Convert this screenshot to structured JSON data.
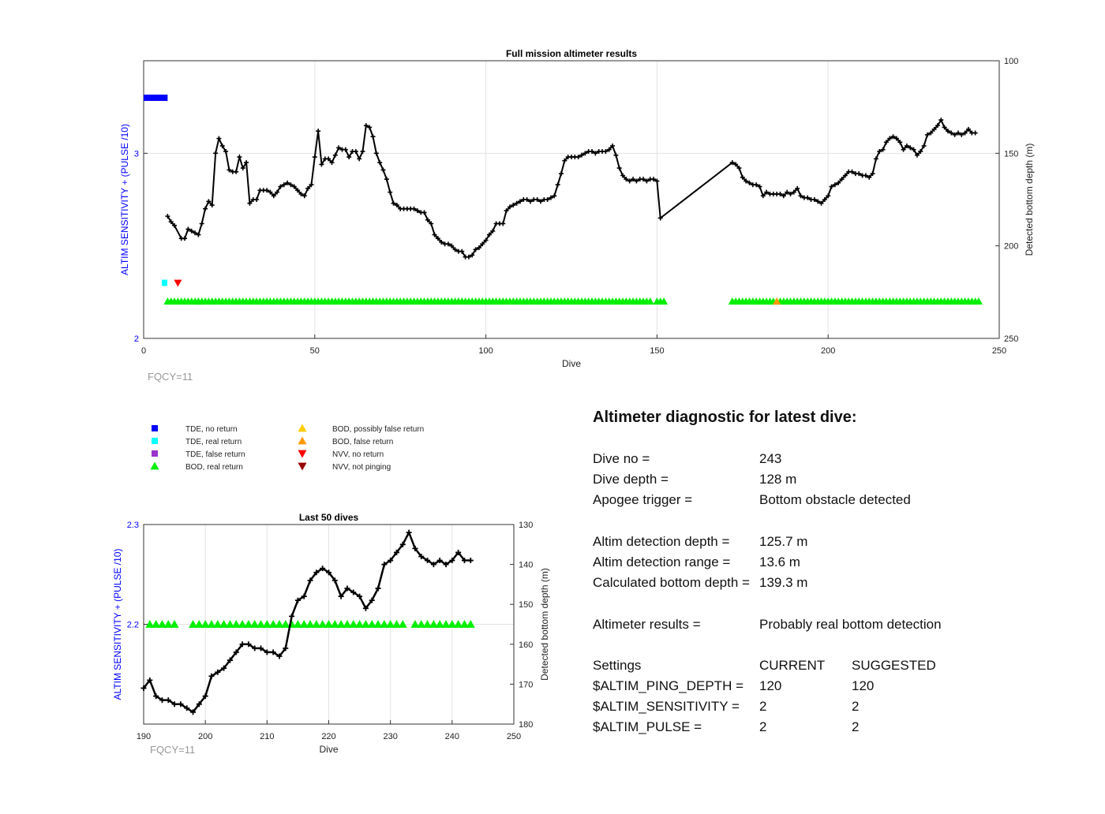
{
  "chart_data": [
    {
      "type": "line",
      "title": "Full mission altimeter results",
      "xlabel": "Dive",
      "ylabel_left": "ALTIM SENSITIVITY + (PULSE /10)",
      "ylabel_right": "Detected bottom depth (m)",
      "xlim": [
        0,
        250
      ],
      "ylim_left": [
        2,
        3.5
      ],
      "ylim_right": [
        250,
        100
      ],
      "xticks": [
        0,
        50,
        100,
        150,
        200,
        250
      ],
      "yticks_left": [
        2,
        3
      ],
      "yticks_right": [
        100,
        150,
        200,
        250
      ],
      "grid": true,
      "note": "FQCY=11",
      "depth_series": {
        "name": "Detected bottom depth",
        "color": "#000000",
        "points": [
          [
            7,
            184
          ],
          [
            8,
            187
          ],
          [
            9,
            189
          ],
          [
            11,
            196
          ],
          [
            12,
            196
          ],
          [
            13,
            191
          ],
          [
            14,
            192
          ],
          [
            15,
            193
          ],
          [
            16,
            194
          ],
          [
            17,
            188
          ],
          [
            18,
            180
          ],
          [
            19,
            176
          ],
          [
            20,
            178
          ],
          [
            21,
            150
          ],
          [
            22,
            142
          ],
          [
            23,
            146
          ],
          [
            24,
            149
          ],
          [
            25,
            159
          ],
          [
            26,
            160
          ],
          [
            27,
            160
          ],
          [
            28,
            152
          ],
          [
            29,
            158
          ],
          [
            30,
            155
          ],
          [
            31,
            177
          ],
          [
            32,
            175
          ],
          [
            33,
            175
          ],
          [
            34,
            170
          ],
          [
            35,
            170
          ],
          [
            36,
            170
          ],
          [
            37,
            171
          ],
          [
            38,
            173
          ],
          [
            39,
            171
          ],
          [
            40,
            168
          ],
          [
            41,
            167
          ],
          [
            42,
            166
          ],
          [
            43,
            167
          ],
          [
            44,
            168
          ],
          [
            45,
            170
          ],
          [
            46,
            172
          ],
          [
            47,
            173
          ],
          [
            48,
            169
          ],
          [
            49,
            167
          ],
          [
            50,
            152
          ],
          [
            51,
            138
          ],
          [
            52,
            156
          ],
          [
            53,
            153
          ],
          [
            54,
            153
          ],
          [
            55,
            155
          ],
          [
            56,
            151
          ],
          [
            57,
            147
          ],
          [
            58,
            148
          ],
          [
            59,
            148
          ],
          [
            60,
            152
          ],
          [
            61,
            149
          ],
          [
            62,
            149
          ],
          [
            63,
            153
          ],
          [
            64,
            149
          ],
          [
            65,
            135
          ],
          [
            66,
            136
          ],
          [
            67,
            141
          ],
          [
            68,
            150
          ],
          [
            69,
            155
          ],
          [
            70,
            159
          ],
          [
            71,
            164
          ],
          [
            72,
            171
          ],
          [
            73,
            177
          ],
          [
            74,
            178
          ],
          [
            75,
            180
          ],
          [
            76,
            180
          ],
          [
            77,
            180
          ],
          [
            78,
            180
          ],
          [
            79,
            180
          ],
          [
            80,
            181
          ],
          [
            81,
            182
          ],
          [
            82,
            182
          ],
          [
            83,
            186
          ],
          [
            84,
            188
          ],
          [
            85,
            194
          ],
          [
            86,
            196
          ],
          [
            87,
            198
          ],
          [
            88,
            199
          ],
          [
            89,
            199
          ],
          [
            90,
            200
          ],
          [
            91,
            202
          ],
          [
            92,
            203
          ],
          [
            93,
            203
          ],
          [
            94,
            206
          ],
          [
            95,
            206
          ],
          [
            96,
            205
          ],
          [
            97,
            202
          ],
          [
            98,
            201
          ],
          [
            99,
            199
          ],
          [
            100,
            197
          ],
          [
            101,
            194
          ],
          [
            102,
            192
          ],
          [
            103,
            188
          ],
          [
            104,
            188
          ],
          [
            105,
            188
          ],
          [
            106,
            181
          ],
          [
            107,
            179
          ],
          [
            108,
            178
          ],
          [
            109,
            177
          ],
          [
            110,
            176
          ],
          [
            111,
            175
          ],
          [
            112,
            175
          ],
          [
            113,
            176
          ],
          [
            114,
            175
          ],
          [
            115,
            175
          ],
          [
            116,
            176
          ],
          [
            117,
            175
          ],
          [
            118,
            175
          ],
          [
            119,
            174
          ],
          [
            120,
            173
          ],
          [
            121,
            167
          ],
          [
            122,
            161
          ],
          [
            123,
            154
          ],
          [
            124,
            152
          ],
          [
            125,
            152
          ],
          [
            126,
            152
          ],
          [
            127,
            152
          ],
          [
            128,
            151
          ],
          [
            129,
            150
          ],
          [
            130,
            149
          ],
          [
            131,
            149
          ],
          [
            132,
            150
          ],
          [
            133,
            149
          ],
          [
            134,
            149
          ],
          [
            135,
            149
          ],
          [
            136,
            148
          ],
          [
            137,
            146
          ],
          [
            138,
            151
          ],
          [
            139,
            158
          ],
          [
            140,
            162
          ],
          [
            141,
            164
          ],
          [
            142,
            165
          ],
          [
            143,
            164
          ],
          [
            144,
            165
          ],
          [
            145,
            164
          ],
          [
            146,
            164
          ],
          [
            147,
            165
          ],
          [
            148,
            164
          ],
          [
            149,
            164
          ],
          [
            150,
            165
          ],
          [
            151,
            185
          ],
          [
            172,
            155
          ],
          [
            173,
            156
          ],
          [
            174,
            158
          ],
          [
            175,
            163
          ],
          [
            176,
            165
          ],
          [
            177,
            166
          ],
          [
            178,
            167
          ],
          [
            179,
            167
          ],
          [
            180,
            168
          ],
          [
            181,
            173
          ],
          [
            182,
            171
          ],
          [
            183,
            172
          ],
          [
            184,
            172
          ],
          [
            185,
            172
          ],
          [
            186,
            172
          ],
          [
            187,
            173
          ],
          [
            188,
            171
          ],
          [
            189,
            172
          ],
          [
            190,
            171
          ],
          [
            191,
            169
          ],
          [
            192,
            173
          ],
          [
            193,
            174
          ],
          [
            194,
            174
          ],
          [
            195,
            175
          ],
          [
            196,
            175
          ],
          [
            197,
            176
          ],
          [
            198,
            177
          ],
          [
            199,
            175
          ],
          [
            200,
            173
          ],
          [
            201,
            168
          ],
          [
            202,
            167
          ],
          [
            203,
            166
          ],
          [
            204,
            164
          ],
          [
            205,
            162
          ],
          [
            206,
            160
          ],
          [
            207,
            160
          ],
          [
            208,
            161
          ],
          [
            209,
            161
          ],
          [
            210,
            162
          ],
          [
            211,
            162
          ],
          [
            212,
            163
          ],
          [
            213,
            161
          ],
          [
            214,
            153
          ],
          [
            215,
            149
          ],
          [
            216,
            148
          ],
          [
            217,
            144
          ],
          [
            218,
            142
          ],
          [
            219,
            141
          ],
          [
            220,
            142
          ],
          [
            221,
            144
          ],
          [
            222,
            148
          ],
          [
            223,
            146
          ],
          [
            224,
            147
          ],
          [
            225,
            148
          ],
          [
            226,
            151
          ],
          [
            227,
            149
          ],
          [
            228,
            146
          ],
          [
            229,
            140
          ],
          [
            230,
            139
          ],
          [
            231,
            137
          ],
          [
            232,
            135
          ],
          [
            233,
            132
          ],
          [
            234,
            136
          ],
          [
            235,
            138
          ],
          [
            236,
            139
          ],
          [
            237,
            140
          ],
          [
            238,
            139
          ],
          [
            239,
            140
          ],
          [
            240,
            139
          ],
          [
            241,
            137
          ],
          [
            242,
            139
          ],
          [
            243,
            139
          ]
        ]
      },
      "status_markers": [
        {
          "type": "TDE, no return",
          "dives": [
            [
              0,
              7
            ]
          ],
          "level": 3.3
        },
        {
          "type": "TDE, real return",
          "dives": [
            [
              6,
              7
            ]
          ],
          "level": 2.3
        },
        {
          "type": "BOD, real return",
          "dives": [
            [
              7,
              16
            ],
            [
              16,
              148
            ],
            [
              150,
              152
            ],
            [
              172,
              244
            ]
          ],
          "level": 2.2
        },
        {
          "type": "BOD, false return",
          "dives": [
            [
              185
            ]
          ],
          "level": 2.2
        },
        {
          "type": "NVV, no return",
          "dives": [
            [
              10
            ]
          ],
          "level": 2.3
        }
      ]
    },
    {
      "type": "line",
      "title": "Last 50 dives",
      "xlabel": "Dive",
      "ylabel_left": "ALTIM SENSITIVITY + (PULSE /10)",
      "ylabel_right": "Detected bottom depth (m)",
      "xlim": [
        190,
        250
      ],
      "ylim_left": [
        2.1,
        2.3
      ],
      "ylim_right": [
        180,
        130
      ],
      "xticks": [
        190,
        200,
        210,
        220,
        230,
        240,
        250
      ],
      "yticks_left": [
        2.2,
        2.3
      ],
      "yticks_right": [
        130,
        140,
        150,
        160,
        170,
        180
      ],
      "grid": true,
      "note": "FQCY=11",
      "bod_real_return_dives": [
        191,
        192,
        193,
        194,
        195,
        198,
        199,
        200,
        201,
        202,
        203,
        204,
        205,
        206,
        207,
        208,
        209,
        210,
        211,
        212,
        213,
        214,
        215,
        216,
        217,
        218,
        219,
        220,
        221,
        222,
        223,
        224,
        225,
        226,
        227,
        228,
        229,
        230,
        231,
        232,
        234,
        235,
        236,
        237,
        238,
        239,
        240,
        241,
        242,
        243
      ]
    }
  ],
  "legend": {
    "items": [
      {
        "label": "TDE, no return",
        "shape": "square",
        "color": "#0000ff"
      },
      {
        "label": "TDE, real return",
        "shape": "square",
        "color": "#00ffff"
      },
      {
        "label": "TDE, false return",
        "shape": "square",
        "color": "#9933cc"
      },
      {
        "label": "BOD, real return",
        "shape": "triangle-up",
        "color": "#00ee00"
      },
      {
        "label": "BOD, possibly false return",
        "shape": "triangle-up",
        "color": "#ffcc00"
      },
      {
        "label": "BOD, false return",
        "shape": "triangle-up",
        "color": "#ff9900"
      },
      {
        "label": "NVV, no return",
        "shape": "triangle-down",
        "color": "#ff0000"
      },
      {
        "label": "NVV, not pinging",
        "shape": "triangle-down",
        "color": "#990000"
      }
    ]
  },
  "diagnostic": {
    "heading": "Altimeter diagnostic for latest dive:",
    "dive_no_label": "Dive no =",
    "dive_no_value": "243",
    "dive_depth_label": "Dive depth =",
    "dive_depth_value": "128 m",
    "apogee_label": "Apogee trigger =",
    "apogee_value": "Bottom obstacle detected",
    "altim_depth_label": "Altim detection depth =",
    "altim_depth_value": "125.7 m",
    "altim_range_label": "Altim detection range =",
    "altim_range_value": "13.6 m",
    "calc_bottom_label": "Calculated bottom depth =",
    "calc_bottom_value": "139.3 m",
    "results_label": "Altimeter results =",
    "results_value": "Probably real bottom detection",
    "settings_label": "Settings",
    "current_label": "CURRENT",
    "suggested_label": "SUGGESTED",
    "ping_depth_label": "$ALTIM_PING_DEPTH =",
    "ping_depth_current": "120",
    "ping_depth_suggested": "120",
    "sensitivity_label": "$ALTIM_SENSITIVITY =",
    "sensitivity_current": "2",
    "sensitivity_suggested": "2",
    "pulse_label": "$ALTIM_PULSE =",
    "pulse_current": "2",
    "pulse_suggested": "2"
  }
}
